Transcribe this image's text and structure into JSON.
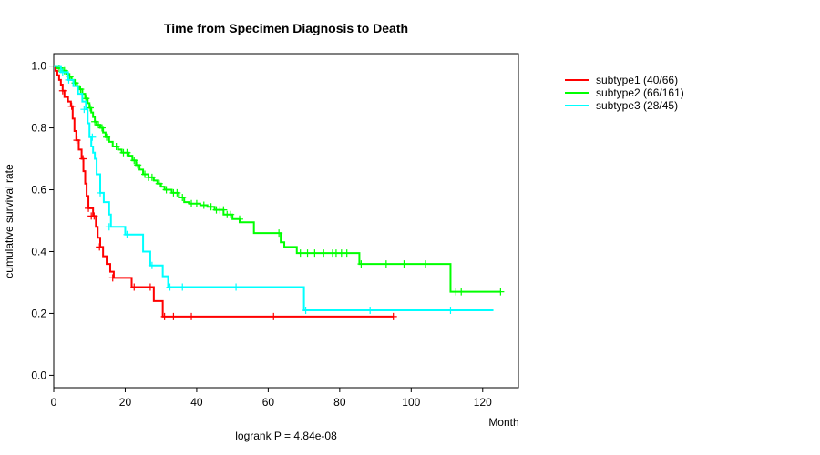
{
  "chart_data": {
    "type": "line",
    "subtype": "kaplan-meier",
    "title": "Time from Specimen Diagnosis to Death",
    "xlabel": "Month",
    "ylabel": "cumulative survival rate",
    "xlim": [
      0,
      130
    ],
    "ylim": [
      -0.04,
      1.04
    ],
    "xticks": [
      0,
      20,
      40,
      60,
      80,
      100,
      120
    ],
    "yticks": [
      0.0,
      0.2,
      0.4,
      0.6,
      0.8,
      1.0
    ],
    "ytick_labels": [
      "0.0",
      "0.2",
      "0.4",
      "0.6",
      "0.8",
      "1.0"
    ],
    "legend_position": "top-right",
    "pvalue_text": "logrank P = 4.84e-08",
    "series": [
      {
        "name": "subtype1 (40/66)",
        "color": "#ff0000",
        "steps": [
          [
            0,
            1.0
          ],
          [
            0.5,
            0.985
          ],
          [
            1.0,
            0.97
          ],
          [
            1.5,
            0.955
          ],
          [
            2.0,
            0.94
          ],
          [
            2.5,
            0.92
          ],
          [
            3.0,
            0.9
          ],
          [
            4.0,
            0.885
          ],
          [
            4.8,
            0.87
          ],
          [
            5.3,
            0.83
          ],
          [
            5.8,
            0.79
          ],
          [
            6.3,
            0.76
          ],
          [
            7.0,
            0.73
          ],
          [
            7.8,
            0.7
          ],
          [
            8.3,
            0.66
          ],
          [
            8.8,
            0.62
          ],
          [
            9.2,
            0.58
          ],
          [
            9.7,
            0.54
          ],
          [
            11.0,
            0.515
          ],
          [
            11.8,
            0.48
          ],
          [
            12.3,
            0.445
          ],
          [
            13.0,
            0.415
          ],
          [
            13.8,
            0.385
          ],
          [
            14.8,
            0.36
          ],
          [
            15.8,
            0.335
          ],
          [
            16.8,
            0.315
          ],
          [
            21.8,
            0.285
          ],
          [
            28.0,
            0.24
          ],
          [
            30.5,
            0.19
          ],
          [
            95.0,
            0.19
          ]
        ],
        "censors": [
          [
            2.5,
            0.92
          ],
          [
            5.0,
            0.87
          ],
          [
            6.5,
            0.76
          ],
          [
            8.2,
            0.7
          ],
          [
            9.7,
            0.54
          ],
          [
            10.5,
            0.515
          ],
          [
            11.3,
            0.515
          ],
          [
            12.8,
            0.415
          ],
          [
            16.5,
            0.315
          ],
          [
            22.5,
            0.285
          ],
          [
            27.0,
            0.285
          ],
          [
            31.0,
            0.19
          ],
          [
            33.5,
            0.19
          ],
          [
            38.5,
            0.19
          ],
          [
            61.5,
            0.19
          ],
          [
            95.0,
            0.19
          ]
        ]
      },
      {
        "name": "subtype2 (66/161)",
        "color": "#00ff00",
        "steps": [
          [
            0,
            1.0
          ],
          [
            1.0,
            0.993
          ],
          [
            2.5,
            0.985
          ],
          [
            3.5,
            0.975
          ],
          [
            4.2,
            0.965
          ],
          [
            5.0,
            0.955
          ],
          [
            5.8,
            0.945
          ],
          [
            6.5,
            0.935
          ],
          [
            7.2,
            0.925
          ],
          [
            8.0,
            0.91
          ],
          [
            8.8,
            0.895
          ],
          [
            9.5,
            0.88
          ],
          [
            10.0,
            0.865
          ],
          [
            10.5,
            0.85
          ],
          [
            11.0,
            0.835
          ],
          [
            11.5,
            0.82
          ],
          [
            12.0,
            0.81
          ],
          [
            13.0,
            0.8
          ],
          [
            13.8,
            0.785
          ],
          [
            14.5,
            0.77
          ],
          [
            15.5,
            0.755
          ],
          [
            16.5,
            0.74
          ],
          [
            18.0,
            0.73
          ],
          [
            19.0,
            0.72
          ],
          [
            21.0,
            0.71
          ],
          [
            22.0,
            0.695
          ],
          [
            23.0,
            0.68
          ],
          [
            24.0,
            0.665
          ],
          [
            25.0,
            0.65
          ],
          [
            26.5,
            0.64
          ],
          [
            28.0,
            0.63
          ],
          [
            29.0,
            0.62
          ],
          [
            30.0,
            0.61
          ],
          [
            31.0,
            0.6
          ],
          [
            33.0,
            0.59
          ],
          [
            35.0,
            0.575
          ],
          [
            36.5,
            0.56
          ],
          [
            38.0,
            0.555
          ],
          [
            41.0,
            0.55
          ],
          [
            43.0,
            0.545
          ],
          [
            45.0,
            0.535
          ],
          [
            47.5,
            0.52
          ],
          [
            50.0,
            0.505
          ],
          [
            52.0,
            0.495
          ],
          [
            56.0,
            0.46
          ],
          [
            63.5,
            0.43
          ],
          [
            64.5,
            0.415
          ],
          [
            68.0,
            0.395
          ],
          [
            85.5,
            0.36
          ],
          [
            111.0,
            0.27
          ],
          [
            125.0,
            0.27
          ]
        ],
        "censors": [
          [
            1.5,
            0.993
          ],
          [
            3.0,
            0.985
          ],
          [
            4.5,
            0.965
          ],
          [
            6.0,
            0.945
          ],
          [
            7.5,
            0.925
          ],
          [
            9.0,
            0.895
          ],
          [
            10.2,
            0.865
          ],
          [
            11.5,
            0.82
          ],
          [
            12.5,
            0.81
          ],
          [
            13.5,
            0.8
          ],
          [
            14.8,
            0.77
          ],
          [
            17.5,
            0.74
          ],
          [
            19.5,
            0.72
          ],
          [
            20.5,
            0.72
          ],
          [
            22.5,
            0.695
          ],
          [
            23.5,
            0.68
          ],
          [
            25.5,
            0.65
          ],
          [
            26.5,
            0.64
          ],
          [
            27.5,
            0.64
          ],
          [
            29.5,
            0.62
          ],
          [
            31.5,
            0.6
          ],
          [
            33.5,
            0.59
          ],
          [
            34.5,
            0.59
          ],
          [
            36.0,
            0.575
          ],
          [
            38.5,
            0.555
          ],
          [
            40.0,
            0.555
          ],
          [
            42.0,
            0.55
          ],
          [
            44.0,
            0.545
          ],
          [
            45.5,
            0.535
          ],
          [
            46.5,
            0.535
          ],
          [
            47.5,
            0.535
          ],
          [
            48.5,
            0.52
          ],
          [
            49.5,
            0.52
          ],
          [
            52.0,
            0.505
          ],
          [
            63.0,
            0.46
          ],
          [
            69.0,
            0.395
          ],
          [
            71.0,
            0.395
          ],
          [
            73.0,
            0.395
          ],
          [
            75.5,
            0.395
          ],
          [
            78.0,
            0.395
          ],
          [
            79.0,
            0.395
          ],
          [
            80.5,
            0.395
          ],
          [
            82.0,
            0.395
          ],
          [
            86.0,
            0.36
          ],
          [
            93.0,
            0.36
          ],
          [
            98.0,
            0.36
          ],
          [
            104.0,
            0.36
          ],
          [
            112.5,
            0.27
          ],
          [
            114.0,
            0.27
          ],
          [
            125.0,
            0.27
          ]
        ]
      },
      {
        "name": "subtype3 (28/45)",
        "color": "#00ffff",
        "steps": [
          [
            0,
            1.0
          ],
          [
            2.0,
            0.98
          ],
          [
            4.0,
            0.955
          ],
          [
            5.5,
            0.935
          ],
          [
            6.8,
            0.91
          ],
          [
            8.0,
            0.885
          ],
          [
            9.0,
            0.86
          ],
          [
            9.5,
            0.815
          ],
          [
            10.0,
            0.77
          ],
          [
            10.5,
            0.74
          ],
          [
            11.0,
            0.72
          ],
          [
            11.5,
            0.7
          ],
          [
            12.0,
            0.65
          ],
          [
            13.0,
            0.59
          ],
          [
            14.0,
            0.56
          ],
          [
            15.5,
            0.52
          ],
          [
            16.0,
            0.48
          ],
          [
            20.0,
            0.455
          ],
          [
            25.0,
            0.4
          ],
          [
            27.0,
            0.355
          ],
          [
            30.5,
            0.32
          ],
          [
            32.0,
            0.285
          ],
          [
            70.0,
            0.21
          ],
          [
            123.0,
            0.21
          ]
        ],
        "censors": [
          [
            2.5,
            0.98
          ],
          [
            4.2,
            0.955
          ],
          [
            8.5,
            0.86
          ],
          [
            10.8,
            0.77
          ],
          [
            13.0,
            0.59
          ],
          [
            15.5,
            0.48
          ],
          [
            20.5,
            0.455
          ],
          [
            27.5,
            0.355
          ],
          [
            32.5,
            0.285
          ],
          [
            36.0,
            0.285
          ],
          [
            51.0,
            0.285
          ],
          [
            70.5,
            0.21
          ],
          [
            88.5,
            0.21
          ],
          [
            111.0,
            0.21
          ]
        ]
      }
    ]
  }
}
